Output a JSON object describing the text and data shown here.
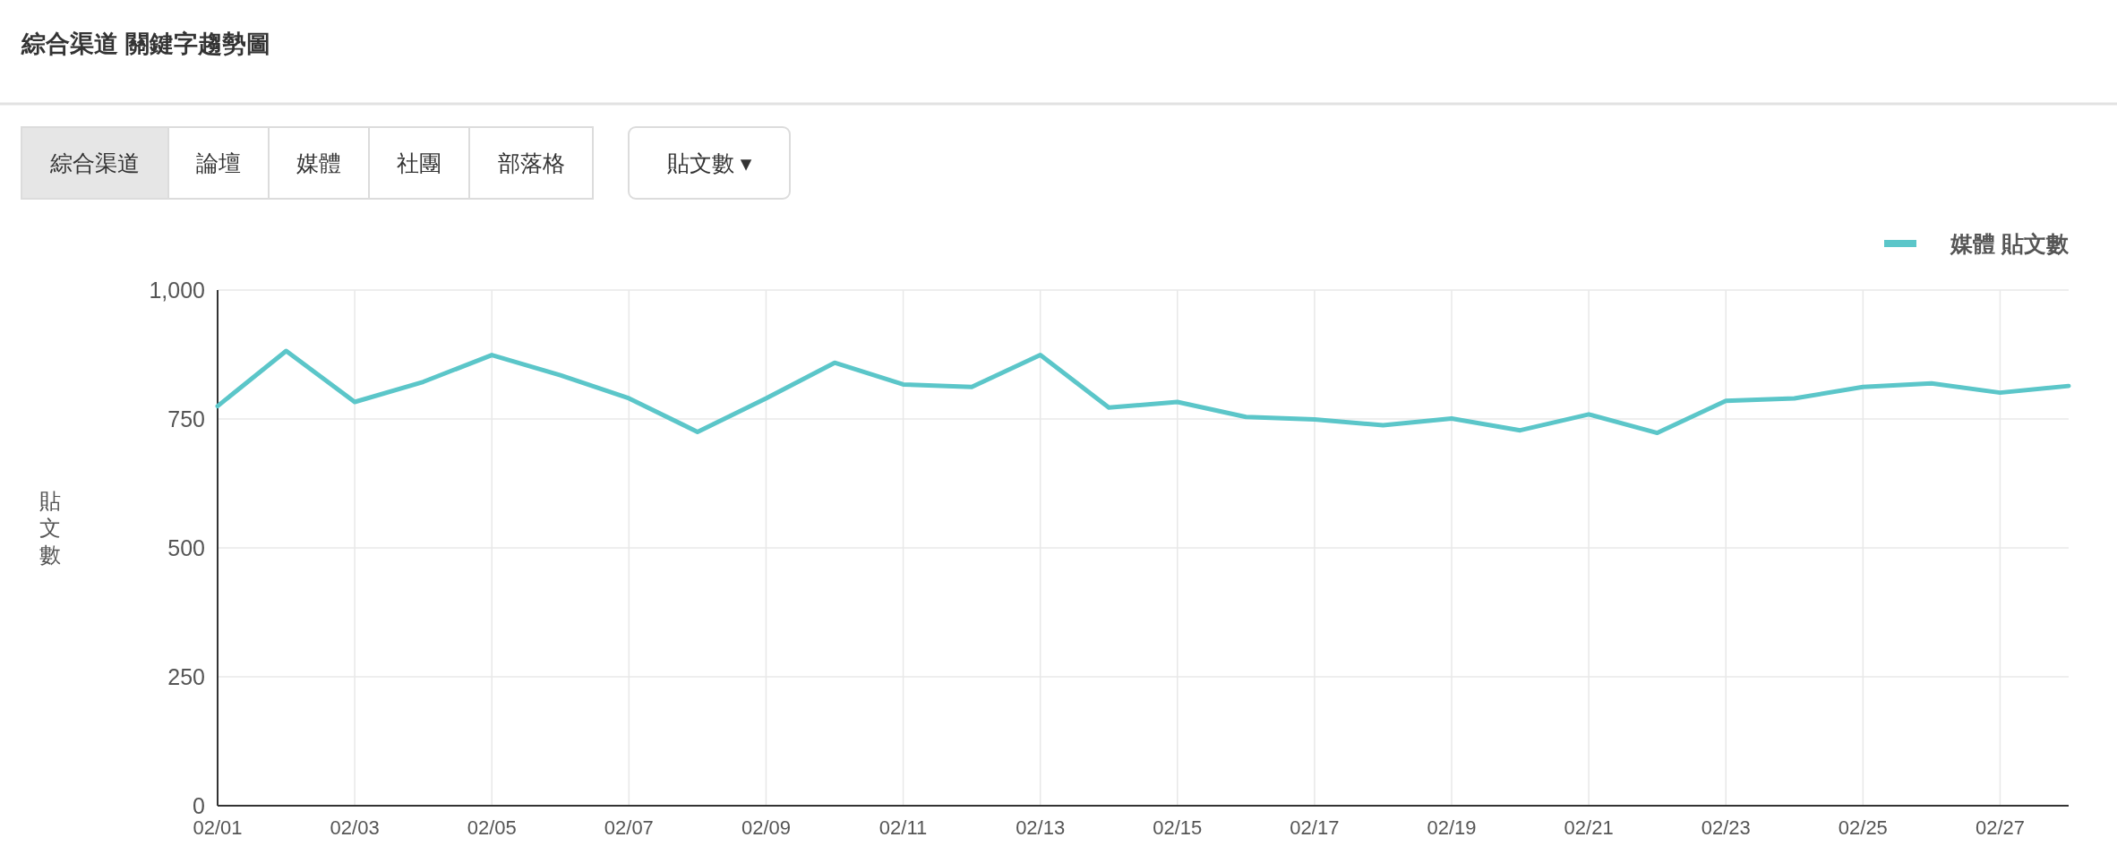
{
  "chart_data": {
    "type": "line",
    "title": "綜合渠道 關鍵字趨勢圖",
    "annotations": [
      "綜合渠道",
      "論壇",
      "媒體",
      "社團",
      "部落格",
      "貼文數 ▾"
    ],
    "ylabel": "貼文數",
    "categories": [
      "02/01",
      null,
      "02/03",
      null,
      "02/05",
      null,
      "02/07",
      null,
      "02/09",
      null,
      "02/11",
      null,
      "02/13",
      null,
      "02/15",
      null,
      "02/17",
      null,
      "02/19",
      null,
      "02/21",
      null,
      "02/23",
      null,
      "02/25",
      null,
      "02/27",
      null
    ],
    "series": [
      {
        "name": "媒體 貼文數",
        "color": "#5bc6c9",
        "values": [
          775,
          882,
          783,
          822,
          874,
          835,
          790,
          725,
          790,
          859,
          817,
          812,
          874,
          772,
          783,
          754,
          749,
          738,
          751,
          728,
          759,
          723,
          785,
          790,
          812,
          819,
          801,
          814
        ]
      }
    ],
    "ylim": [
      0,
      1000
    ],
    "yticks": [
      0,
      250,
      500,
      750,
      {
        "value": 1000,
        "label": "1,000"
      }
    ],
    "grid": true,
    "legend": "top right",
    "marker": "none",
    "line_style": "solid"
  }
}
